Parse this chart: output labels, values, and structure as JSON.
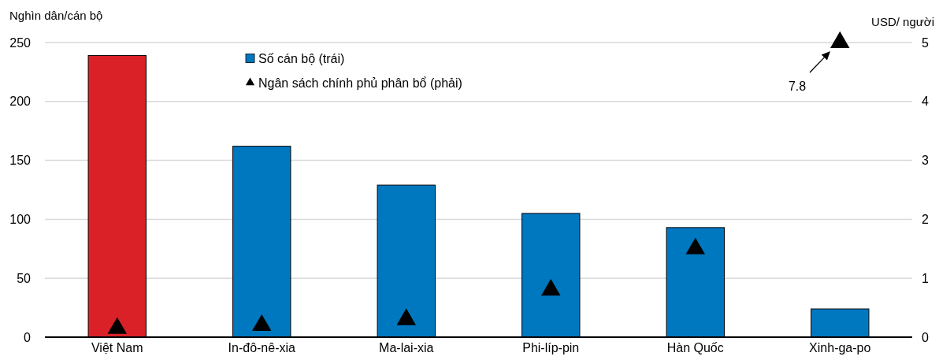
{
  "chart_data": {
    "type": "bar",
    "categories": [
      "Việt Nam",
      "In-đô-nê-xia",
      "Ma-lai-xia",
      "Phi-líp-pin",
      "Hàn Quốc",
      "Xinh-ga-po"
    ],
    "series": [
      {
        "name": "Số cán bộ (trái)",
        "color": "#0078c0",
        "colors": [
          "#da2128",
          "#0078c0",
          "#0078c0",
          "#0078c0",
          "#0078c0",
          "#0078c0"
        ],
        "values": [
          239,
          162,
          129,
          105,
          93,
          24
        ]
      },
      {
        "name": "Ngân sách chính phủ phân bổ (phải)",
        "type": "scatter",
        "axis": "y2",
        "color": "#000000",
        "values": [
          0.15,
          0.2,
          0.3,
          0.8,
          1.5,
          5
        ]
      }
    ],
    "ylabel": "Nghìn dân/cán bộ",
    "y2label": "USD/ người",
    "ylim": [
      0,
      250
    ],
    "yticks": [
      0,
      50,
      100,
      150,
      200,
      250
    ],
    "y2lim": [
      0,
      5
    ],
    "y2ticks": [
      0,
      1,
      2,
      3,
      4,
      5
    ],
    "grid": "y",
    "legend": "top left",
    "marker": "triangle",
    "annotations": [
      "7.8"
    ]
  }
}
